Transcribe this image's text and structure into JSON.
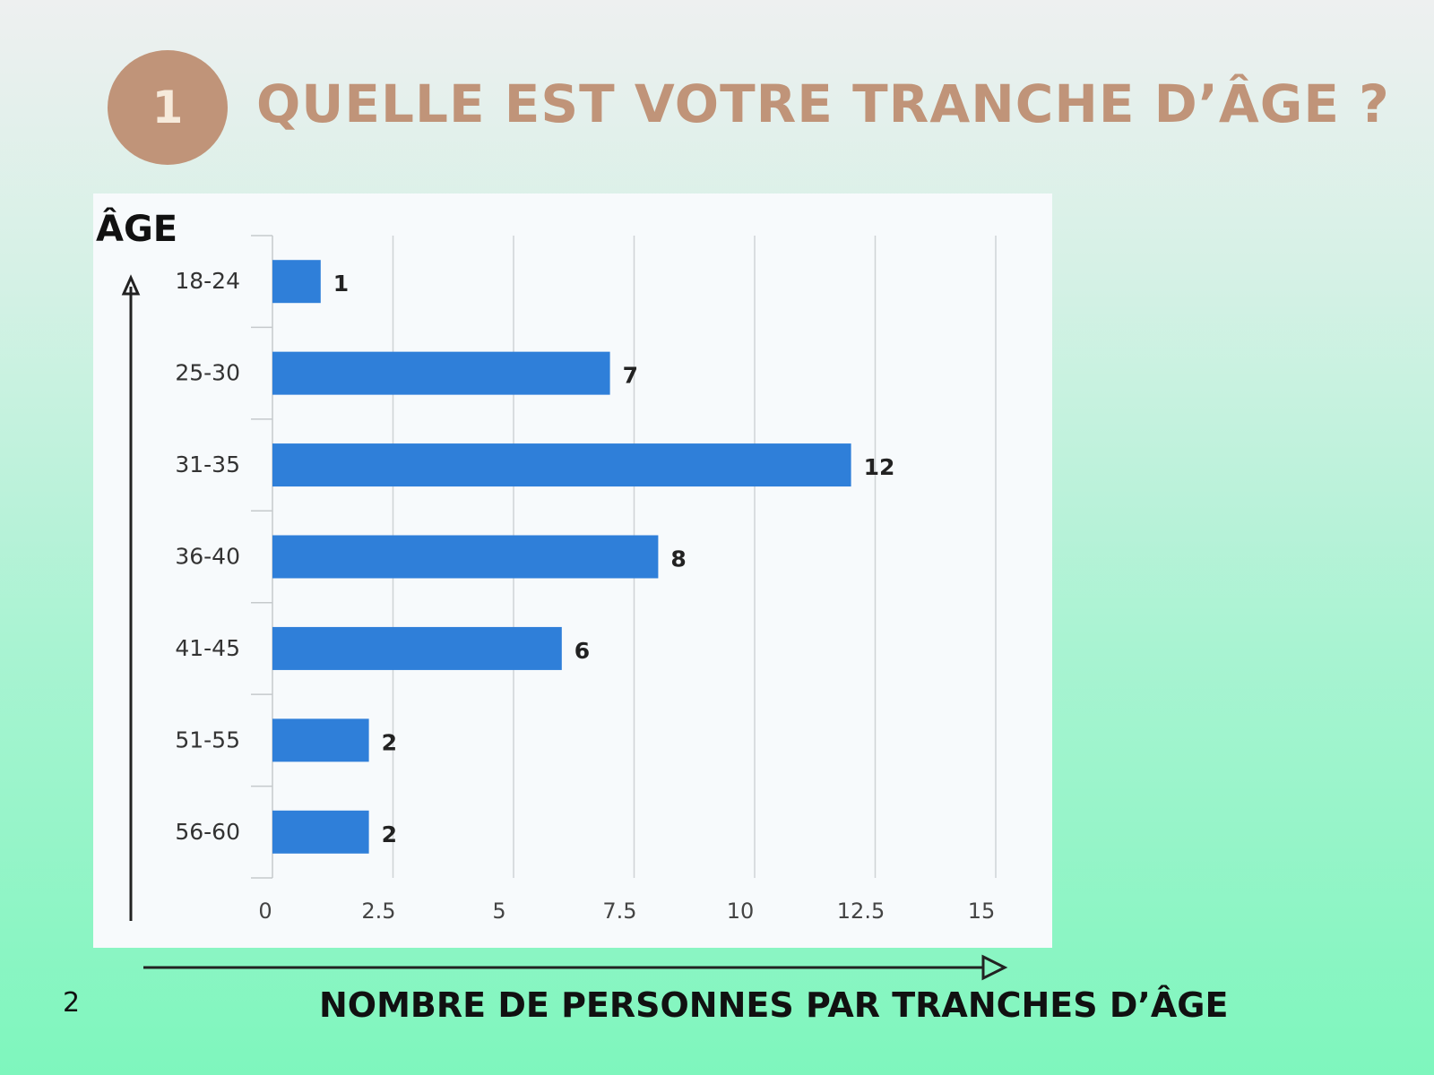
{
  "header": {
    "number": "1",
    "title": "QUELLE EST VOTRE TRANCHE D’ÂGE ?"
  },
  "footer": {
    "page_number": "2"
  },
  "chart_data": {
    "type": "bar",
    "orientation": "horizontal",
    "categories": [
      "18-24",
      "25-30",
      "31-35",
      "36-40",
      "41-45",
      "51-55",
      "56-60"
    ],
    "values": [
      1,
      7,
      12,
      8,
      6,
      2,
      2
    ],
    "x_ticks": [
      "0",
      "2.5",
      "5",
      "7.5",
      "10",
      "12.5",
      "15"
    ],
    "xlim": [
      0,
      15
    ],
    "xlabel": "NOMBRE DE PERSONNES PAR TRANCHES D’ÂGE",
    "ylabel": "ÂGE",
    "grid": true,
    "bar_color": "#2f7fd9",
    "title_color": "#c09479"
  }
}
